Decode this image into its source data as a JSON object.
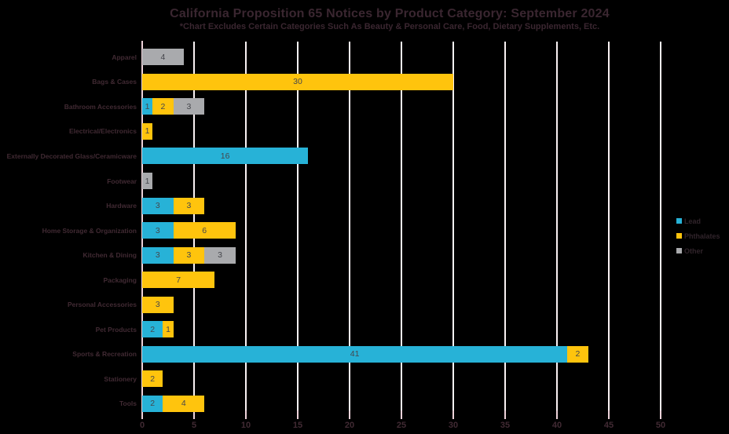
{
  "chart": {
    "title": "California Proposition 65 Notices by Product Category: September 2024",
    "subtitle": "*Chart Excludes Certain Categories Such As Beauty & Personal Care, Food, Dietary Supplements, Etc."
  },
  "chart_data": {
    "type": "bar",
    "orientation": "horizontal",
    "stacked": true,
    "title": "California Proposition 65 Notices by Product Category: September 2024",
    "subtitle": "*Chart Excludes Certain Categories Such As Beauty & Personal Care, Food, Dietary Supplements, Etc.",
    "categories": [
      "Apparel",
      "Bags & Cases",
      "Bathroom Accessories",
      "Electrical/Electronics",
      "Externally Decorated Glass/Ceramicware",
      "Footwear",
      "Hardware",
      "Home Storage & Organization",
      "Kitchen & Dining",
      "Packaging",
      "Personal Accessories",
      "Pet Products",
      "Sports & Recreation",
      "Stationery",
      "Tools"
    ],
    "series": [
      {
        "name": "Lead",
        "color": "#27b2d7",
        "values": [
          0,
          0,
          1,
          0,
          16,
          0,
          3,
          3,
          3,
          0,
          0,
          2,
          41,
          0,
          2
        ]
      },
      {
        "name": "Phthalates",
        "color": "#ffc40d",
        "values": [
          0,
          30,
          2,
          1,
          0,
          0,
          3,
          6,
          3,
          7,
          3,
          1,
          2,
          2,
          4
        ]
      },
      {
        "name": "Other",
        "color": "#a9aaad",
        "values": [
          4,
          0,
          3,
          0,
          0,
          1,
          0,
          0,
          3,
          0,
          0,
          0,
          0,
          0,
          0
        ]
      }
    ],
    "xlim": [
      0,
      50
    ],
    "xticks": [
      0,
      5,
      10,
      15,
      20,
      25,
      30,
      35,
      40,
      45,
      50
    ],
    "grid": true,
    "value_labels": true,
    "legend_position": "right"
  },
  "colors": {
    "background": "#000000",
    "gridline": "#faf2f4",
    "axis": "#eed3da",
    "title_text": "#3a2630",
    "category_text": "#412a33",
    "tick_text": "#412a33",
    "value_text": "#45464c",
    "legend_text": "#31242b"
  }
}
